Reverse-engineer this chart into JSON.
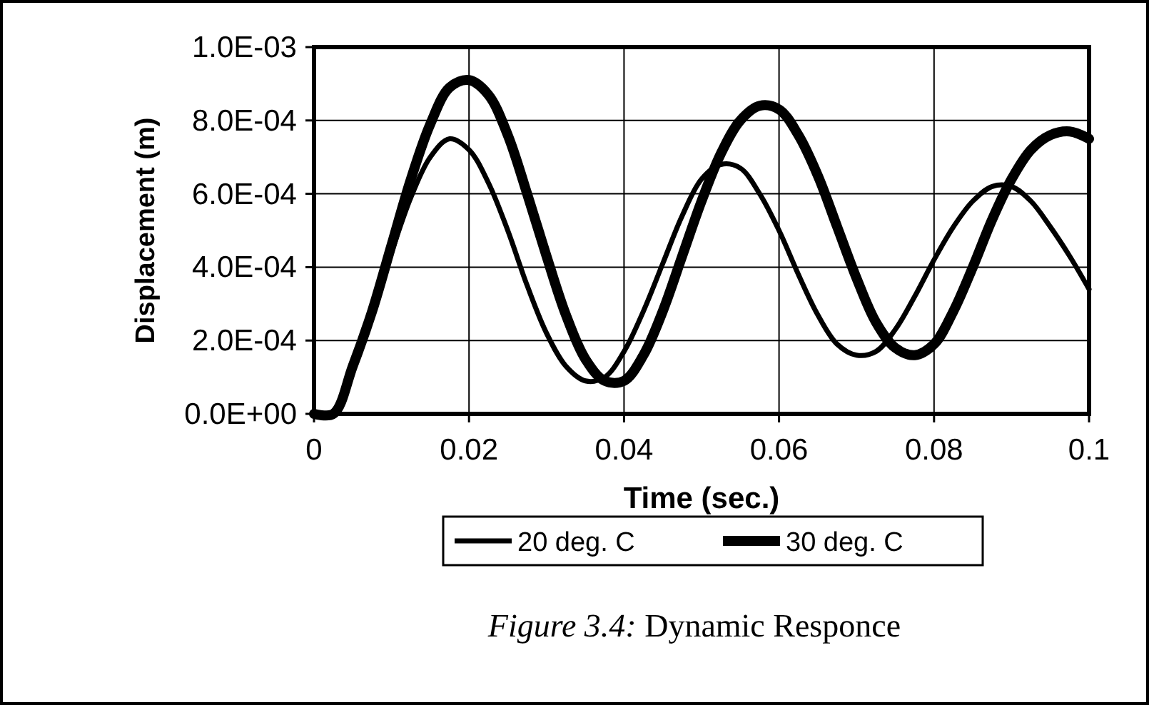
{
  "chart_data": {
    "type": "line",
    "title": "Figure 3.4: Dynamic Responce",
    "xlabel": "Time (sec.)",
    "ylabel": "Displacement (m)",
    "x": [
      0,
      0.0025,
      0.005,
      0.0075,
      0.01,
      0.0125,
      0.015,
      0.0175,
      0.02,
      0.0225,
      0.025,
      0.0275,
      0.03,
      0.0325,
      0.035,
      0.0375,
      0.04,
      0.0425,
      0.045,
      0.0475,
      0.05,
      0.0525,
      0.055,
      0.0575,
      0.06,
      0.0625,
      0.065,
      0.0675,
      0.07,
      0.0725,
      0.075,
      0.0775,
      0.08,
      0.0825,
      0.085,
      0.0875,
      0.09,
      0.0925,
      0.095,
      0.0975,
      0.1
    ],
    "series": [
      {
        "name": "20 deg. C",
        "color": "#000000",
        "values": [
          0,
          0,
          0.00013,
          0.00028,
          0.00044,
          0.00059,
          0.0007,
          0.00075,
          0.00072,
          0.00063,
          0.0005,
          0.00035,
          0.00022,
          0.00013,
          9e-05,
          0.0001,
          0.00017,
          0.00028,
          0.00041,
          0.00054,
          0.00064,
          0.00068,
          0.00067,
          0.0006,
          0.0005,
          0.00038,
          0.00027,
          0.00019,
          0.00016,
          0.00017,
          0.00023,
          0.00032,
          0.00042,
          0.00051,
          0.00058,
          0.00062,
          0.00062,
          0.00058,
          0.00051,
          0.00043,
          0.00034
        ]
      },
      {
        "name": "30 deg. C",
        "color": "#000000",
        "values": [
          0,
          0,
          0.00013,
          0.00028,
          0.00046,
          0.00064,
          0.00079,
          0.00089,
          0.00091,
          0.00087,
          0.00076,
          0.0006,
          0.00043,
          0.00027,
          0.00015,
          9e-05,
          9e-05,
          0.00016,
          0.00028,
          0.00043,
          0.00058,
          0.00071,
          0.0008,
          0.00084,
          0.00083,
          0.00076,
          0.00065,
          0.00051,
          0.00037,
          0.00025,
          0.00018,
          0.00016,
          0.00019,
          0.00028,
          0.0004,
          0.00053,
          0.00064,
          0.00072,
          0.00076,
          0.00077,
          0.00075
        ]
      }
    ],
    "xlim": [
      0,
      0.1
    ],
    "xticks": [
      0,
      0.02,
      0.04,
      0.06,
      0.08,
      0.1
    ],
    "ylim": [
      0,
      0.001
    ],
    "yticks": [
      {
        "value": 0,
        "label": "0.0E+00"
      },
      {
        "value": 0.0002,
        "label": "2.0E-04"
      },
      {
        "value": 0.0004,
        "label": "4.0E-04"
      },
      {
        "value": 0.0006,
        "label": "6.0E-04"
      },
      {
        "value": 0.0008,
        "label": "8.0E-04"
      },
      {
        "value": 0.001,
        "label": "1.0E-03"
      }
    ],
    "grid": true,
    "legend": "bottom",
    "marker": "none",
    "line_style": "solid"
  }
}
